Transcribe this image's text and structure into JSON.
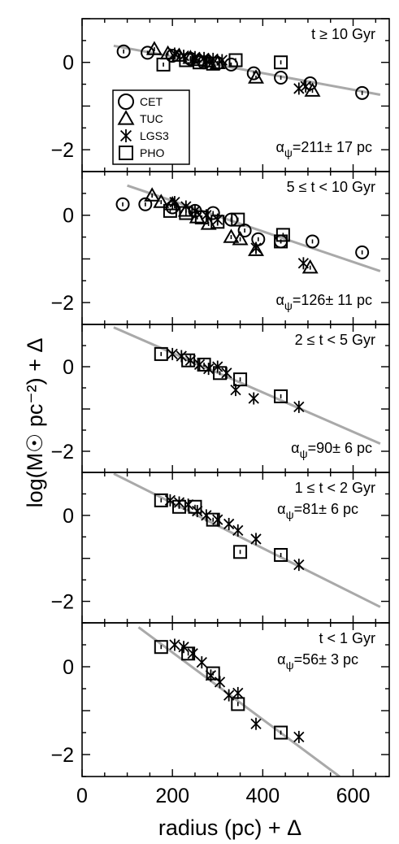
{
  "figure": {
    "ylabel": "log(M☉ pc⁻²) + Δ",
    "xlabel": "radius (pc) + Δ"
  },
  "legend": {
    "placement": "inside panel 1, lower-left",
    "entries": [
      {
        "name": "CET",
        "marker": "circle"
      },
      {
        "name": "TUC",
        "marker": "triangle"
      },
      {
        "name": "LGS3",
        "marker": "asterisk"
      },
      {
        "name": "PHO",
        "marker": "square"
      }
    ]
  },
  "colors": {
    "fit_line": "#a9a9a9",
    "markers": "#000000",
    "axes": "#000000"
  },
  "chart_data": [
    {
      "type": "scatter",
      "label": "t ≥ 10 Gyr",
      "alpha": "α_ψ=211± 17 pc",
      "alpha_prefix": "α",
      "alpha_sub": "ψ",
      "alpha_rest": "=211± 17 pc",
      "xlim": [
        0,
        680
      ],
      "ylim": [
        -2.5,
        1.0
      ],
      "xticks": [
        0,
        200,
        400,
        600
      ],
      "yticks": [
        0,
        -2
      ],
      "fit": {
        "x": [
          70,
          660
        ],
        "y": [
          0.38,
          -0.74
        ]
      },
      "series": [
        {
          "name": "CET",
          "marker": "circle",
          "points": [
            [
              92,
              0.25
            ],
            [
              145,
              0.22
            ],
            [
              200,
              0.15
            ],
            [
              240,
              0.08
            ],
            [
              270,
              0.0
            ],
            [
              300,
              -0.02
            ],
            [
              330,
              -0.05
            ],
            [
              380,
              -0.25
            ],
            [
              440,
              -0.35
            ],
            [
              505,
              -0.48
            ],
            [
              620,
              -0.7
            ]
          ]
        },
        {
          "name": "TUC",
          "marker": "triangle",
          "points": [
            [
              160,
              0.3
            ],
            [
              190,
              0.2
            ],
            [
              215,
              0.15
            ],
            [
              240,
              0.1
            ],
            [
              260,
              0.05
            ],
            [
              280,
              0.02
            ],
            [
              300,
              -0.02
            ],
            [
              385,
              -0.35
            ],
            [
              510,
              -0.65
            ]
          ]
        },
        {
          "name": "LGS3",
          "marker": "asterisk",
          "points": [
            [
              205,
              0.2
            ],
            [
              225,
              0.15
            ],
            [
              250,
              0.12
            ],
            [
              270,
              0.1
            ],
            [
              290,
              0.08
            ],
            [
              310,
              0.05
            ],
            [
              480,
              -0.6
            ],
            [
              495,
              -0.55
            ]
          ]
        },
        {
          "name": "PHO",
          "marker": "square",
          "points": [
            [
              180,
              -0.05
            ],
            [
              230,
              0.05
            ],
            [
              260,
              0.0
            ],
            [
              290,
              -0.03
            ],
            [
              340,
              0.05
            ],
            [
              440,
              0.0
            ]
          ]
        }
      ]
    },
    {
      "type": "scatter",
      "label": "5 ≤ t < 10 Gyr",
      "alpha": "α_ψ=126± 11 pc",
      "alpha_prefix": "α",
      "alpha_sub": "ψ",
      "alpha_rest": "=126± 11 pc",
      "xlim": [
        0,
        680
      ],
      "ylim": [
        -2.5,
        1.0
      ],
      "xticks": [
        0,
        200,
        400,
        600
      ],
      "yticks": [
        0,
        -2
      ],
      "fit": {
        "x": [
          100,
          660
        ],
        "y": [
          0.68,
          -1.28
        ]
      },
      "series": [
        {
          "name": "CET",
          "marker": "circle",
          "points": [
            [
              90,
              0.25
            ],
            [
              140,
              0.25
            ],
            [
              200,
              0.18
            ],
            [
              250,
              0.1
            ],
            [
              290,
              0.05
            ],
            [
              330,
              -0.1
            ],
            [
              360,
              -0.35
            ],
            [
              390,
              -0.55
            ],
            [
              440,
              -0.6
            ],
            [
              510,
              -0.6
            ],
            [
              620,
              -0.85
            ]
          ]
        },
        {
          "name": "TUC",
          "marker": "triangle",
          "points": [
            [
              155,
              0.45
            ],
            [
              175,
              0.3
            ],
            [
              200,
              0.25
            ],
            [
              230,
              0.1
            ],
            [
              255,
              -0.05
            ],
            [
              280,
              -0.2
            ],
            [
              330,
              -0.5
            ],
            [
              350,
              -0.55
            ],
            [
              385,
              -0.8
            ],
            [
              505,
              -1.2
            ]
          ]
        },
        {
          "name": "LGS3",
          "marker": "asterisk",
          "points": [
            [
              205,
              0.3
            ],
            [
              230,
              0.2
            ],
            [
              250,
              0.1
            ],
            [
              275,
              0.0
            ],
            [
              300,
              -0.1
            ],
            [
              385,
              -0.75
            ],
            [
              490,
              -1.1
            ]
          ]
        },
        {
          "name": "PHO",
          "marker": "square",
          "points": [
            [
              195,
              0.1
            ],
            [
              230,
              0.05
            ],
            [
              265,
              -0.05
            ],
            [
              300,
              -0.15
            ],
            [
              345,
              -0.1
            ],
            [
              440,
              -0.6
            ],
            [
              445,
              -0.45
            ]
          ]
        }
      ]
    },
    {
      "type": "scatter",
      "label": "2 ≤ t < 5 Gyr",
      "alpha": "α_ψ=90± 6 pc",
      "alpha_prefix": "α",
      "alpha_sub": "ψ",
      "alpha_rest": "=90± 6 pc",
      "xlim": [
        0,
        680
      ],
      "ylim": [
        -2.5,
        1.0
      ],
      "xticks": [
        0,
        200,
        400,
        600
      ],
      "yticks": [
        0,
        -2
      ],
      "fit": {
        "x": [
          70,
          660
        ],
        "y": [
          0.93,
          -1.82
        ]
      },
      "series": [
        {
          "name": "LGS3",
          "marker": "asterisk",
          "points": [
            [
              200,
              0.3
            ],
            [
              220,
              0.25
            ],
            [
              240,
              0.15
            ],
            [
              260,
              0.05
            ],
            [
              280,
              -0.05
            ],
            [
              300,
              0.0
            ],
            [
              320,
              -0.15
            ],
            [
              340,
              -0.55
            ],
            [
              380,
              -0.75
            ],
            [
              480,
              -0.95
            ]
          ]
        },
        {
          "name": "PHO",
          "marker": "square",
          "points": [
            [
              175,
              0.3
            ],
            [
              235,
              0.15
            ],
            [
              270,
              0.05
            ],
            [
              305,
              -0.15
            ],
            [
              350,
              -0.3
            ],
            [
              440,
              -0.7
            ]
          ]
        }
      ]
    },
    {
      "type": "scatter",
      "label": "1 ≤ t < 2 Gyr",
      "alpha": "α_ψ=81± 6 pc",
      "alpha_prefix": "α",
      "alpha_sub": "ψ",
      "alpha_rest": "=81± 6 pc",
      "xlim": [
        0,
        680
      ],
      "ylim": [
        -2.5,
        1.0
      ],
      "xticks": [
        0,
        200,
        400,
        600
      ],
      "yticks": [
        0,
        -2
      ],
      "fit": {
        "x": [
          70,
          660
        ],
        "y": [
          0.97,
          -2.13
        ]
      },
      "series": [
        {
          "name": "LGS3",
          "marker": "asterisk",
          "points": [
            [
              195,
              0.35
            ],
            [
              215,
              0.3
            ],
            [
              235,
              0.25
            ],
            [
              255,
              0.1
            ],
            [
              275,
              0.0
            ],
            [
              300,
              -0.1
            ],
            [
              325,
              -0.2
            ],
            [
              345,
              -0.35
            ],
            [
              385,
              -0.55
            ],
            [
              480,
              -1.15
            ]
          ]
        },
        {
          "name": "PHO",
          "marker": "square",
          "points": [
            [
              175,
              0.35
            ],
            [
              215,
              0.2
            ],
            [
              250,
              0.2
            ],
            [
              290,
              -0.1
            ],
            [
              350,
              -0.85
            ],
            [
              440,
              -0.92
            ]
          ]
        }
      ]
    },
    {
      "type": "scatter",
      "label": "t < 1 Gyr",
      "alpha": "α_ψ=56± 3 pc",
      "alpha_prefix": "α",
      "alpha_sub": "ψ",
      "alpha_rest": "=56± 3 pc",
      "xlim": [
        0,
        680
      ],
      "ylim": [
        -2.5,
        1.0
      ],
      "xticks": [
        0,
        200,
        400,
        600
      ],
      "yticks": [
        0,
        -2
      ],
      "fit": {
        "x": [
          125,
          570
        ],
        "y": [
          0.9,
          -2.5
        ]
      },
      "series": [
        {
          "name": "LGS3",
          "marker": "asterisk",
          "points": [
            [
              205,
              0.5
            ],
            [
              225,
              0.45
            ],
            [
              245,
              0.3
            ],
            [
              265,
              0.1
            ],
            [
              285,
              -0.2
            ],
            [
              305,
              -0.35
            ],
            [
              325,
              -0.65
            ],
            [
              345,
              -0.6
            ],
            [
              385,
              -1.3
            ],
            [
              480,
              -1.6
            ]
          ]
        },
        {
          "name": "PHO",
          "marker": "square",
          "points": [
            [
              175,
              0.45
            ],
            [
              235,
              0.3
            ],
            [
              290,
              -0.15
            ],
            [
              345,
              -0.85
            ],
            [
              440,
              -1.5
            ]
          ]
        }
      ]
    }
  ]
}
